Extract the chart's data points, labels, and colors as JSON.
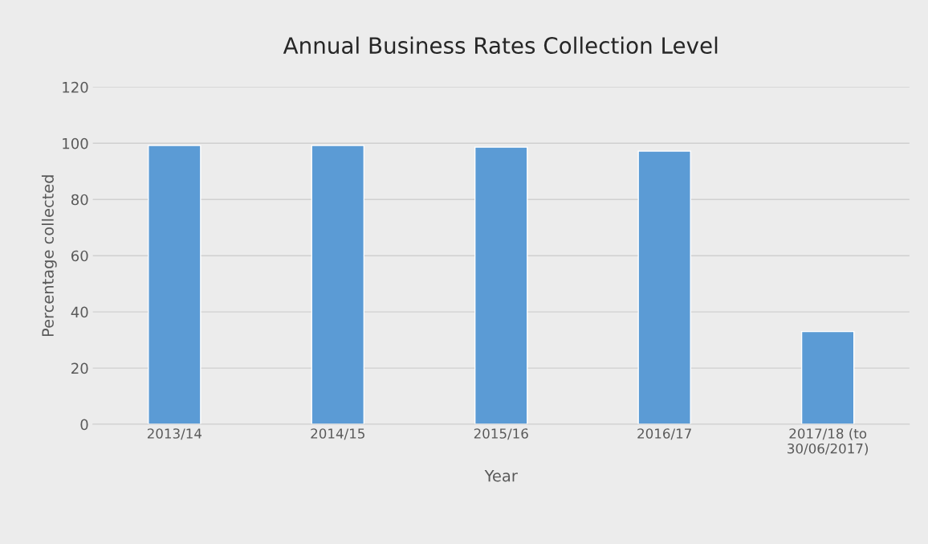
{
  "chart_data": {
    "type": "bar",
    "title": "Annual Business Rates Collection Level",
    "xlabel": "Year",
    "ylabel": "Percentage collected",
    "categories": [
      "2013/14",
      "2014/15",
      "2015/16",
      "2016/17",
      "2017/18 (to\n30/06/2017)"
    ],
    "values": [
      99.2,
      99.2,
      98.6,
      97.2,
      33
    ],
    "color": "#5b9bd5",
    "ylim": [
      0,
      120
    ],
    "yticks": [
      0,
      20,
      40,
      60,
      80,
      100,
      120
    ],
    "grid": "y",
    "legend": false
  }
}
